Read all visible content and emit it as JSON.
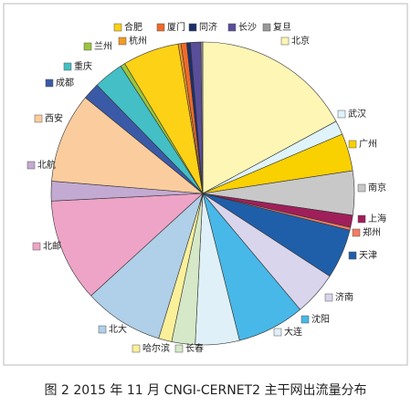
{
  "chart_data": {
    "type": "pie",
    "title": "图 2 2015 年 11 月 CNGI-CERNET2 主干网出流量分布",
    "categories": [
      "北京",
      "武汉",
      "广州",
      "南京",
      "上海",
      "郑州",
      "天津",
      "济南",
      "沈阳",
      "大连",
      "长春",
      "哈尔滨",
      "北大",
      "北邮",
      "北航",
      "西安",
      "成都",
      "重庆",
      "兰州",
      "合肥",
      "杭州",
      "厦门",
      "同济",
      "长沙",
      "复旦"
    ],
    "values": [
      17.1,
      1.5,
      4,
      4.7,
      1.3,
      0.3,
      5.3,
      4.7,
      7.2,
      4.7,
      2.5,
      1.4,
      8.5,
      11,
      2.1,
      9.6,
      1.8,
      3.2,
      0.5,
      6,
      0.3,
      0.6,
      0.4,
      1.1,
      0.2
    ],
    "colors": [
      "#fef6b5",
      "#dff3fb",
      "#f9d000",
      "#c8c8c8",
      "#a01f5a",
      "#f47c60",
      "#1f5faa",
      "#d9d5ec",
      "#47b8e8",
      "#e0f0f8",
      "#d5e8c8",
      "#fbf09a",
      "#b0cfe8",
      "#eea4c6",
      "#c3aad2",
      "#fbcd9e",
      "#3a5aa7",
      "#43bfc5",
      "#9bc53d",
      "#fcd116",
      "#f39a23",
      "#ef6b2a",
      "#1c2f6b",
      "#5a4e9a",
      "#999999"
    ]
  }
}
